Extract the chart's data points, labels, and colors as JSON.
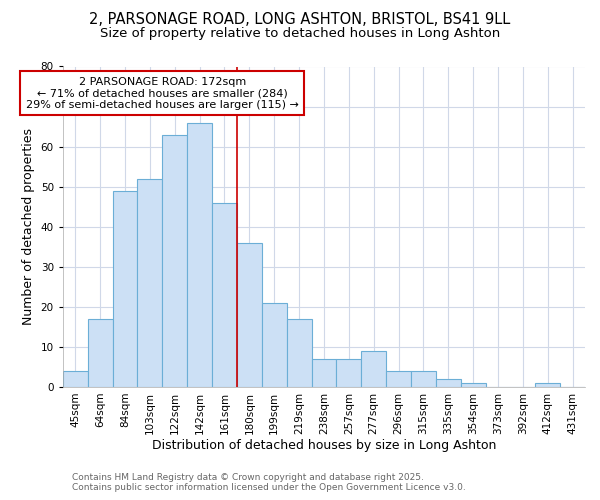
{
  "title_line1": "2, PARSONAGE ROAD, LONG ASHTON, BRISTOL, BS41 9LL",
  "title_line2": "Size of property relative to detached houses in Long Ashton",
  "xlabel": "Distribution of detached houses by size in Long Ashton",
  "ylabel": "Number of detached properties",
  "bar_color": "#cce0f5",
  "bar_edge_color": "#6baed6",
  "categories": [
    "45sqm",
    "64sqm",
    "84sqm",
    "103sqm",
    "122sqm",
    "142sqm",
    "161sqm",
    "180sqm",
    "199sqm",
    "219sqm",
    "238sqm",
    "257sqm",
    "277sqm",
    "296sqm",
    "315sqm",
    "335sqm",
    "354sqm",
    "373sqm",
    "392sqm",
    "412sqm",
    "431sqm"
  ],
  "values": [
    4,
    17,
    49,
    52,
    63,
    66,
    46,
    36,
    21,
    17,
    7,
    7,
    9,
    4,
    4,
    2,
    1,
    0,
    0,
    1,
    0
  ],
  "ylim": [
    0,
    80
  ],
  "yticks": [
    0,
    10,
    20,
    30,
    40,
    50,
    60,
    70,
    80
  ],
  "vline_x_idx": 7,
  "vline_color": "#cc0000",
  "annotation_title": "2 PARSONAGE ROAD: 172sqm",
  "annotation_line2": "← 71% of detached houses are smaller (284)",
  "annotation_line3": "29% of semi-detached houses are larger (115) →",
  "annotation_box_facecolor": "#ffffff",
  "annotation_box_edgecolor": "#cc0000",
  "footer_line1": "Contains HM Land Registry data © Crown copyright and database right 2025.",
  "footer_line2": "Contains public sector information licensed under the Open Government Licence v3.0.",
  "background_color": "#ffffff",
  "plot_bg_color": "#ffffff",
  "grid_color": "#d0d8e8",
  "title_fontsize": 10.5,
  "subtitle_fontsize": 9.5,
  "axis_label_fontsize": 9,
  "tick_fontsize": 7.5,
  "annotation_fontsize": 8,
  "footer_fontsize": 6.5
}
